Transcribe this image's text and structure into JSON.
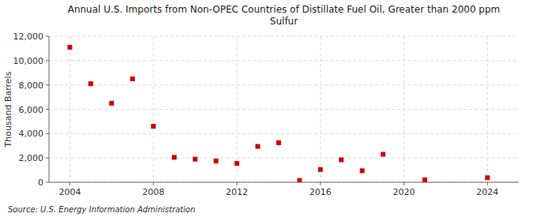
{
  "chart_data": {
    "type": "scatter",
    "title": "Annual U.S. Imports from Non-OPEC Countries of Distillate Fuel Oil, Greater than 2000 ppm\nSulfur",
    "y_label": "Thousand Barrels",
    "source": "Source: U.S. Energy Information Administration",
    "x": [
      2004,
      2005,
      2006,
      2007,
      2008,
      2009,
      2010,
      2011,
      2012,
      2013,
      2014,
      2015,
      2016,
      2017,
      2018,
      2019,
      2021,
      2024
    ],
    "values": [
      11100,
      8100,
      6500,
      8500,
      4600,
      2050,
      1900,
      1750,
      1550,
      2950,
      3250,
      150,
      1050,
      1850,
      950,
      2300,
      200,
      375
    ],
    "color": "#cc0000",
    "marker": "square",
    "xlim": [
      2003.0,
      2025.5
    ],
    "ylim": [
      0,
      12000
    ],
    "xticks": [
      2004,
      2008,
      2012,
      2016,
      2020,
      2024
    ],
    "yticks": [
      0,
      {
        "value": 2000,
        "label": "2,000"
      },
      {
        "value": 4000,
        "label": "4,000"
      },
      {
        "value": 6000,
        "label": "6,000"
      },
      {
        "value": 8000,
        "label": "8,000"
      },
      {
        "value": 10000,
        "label": "10,000"
      },
      {
        "value": 12000,
        "label": "12,000"
      }
    ],
    "grid": true
  }
}
